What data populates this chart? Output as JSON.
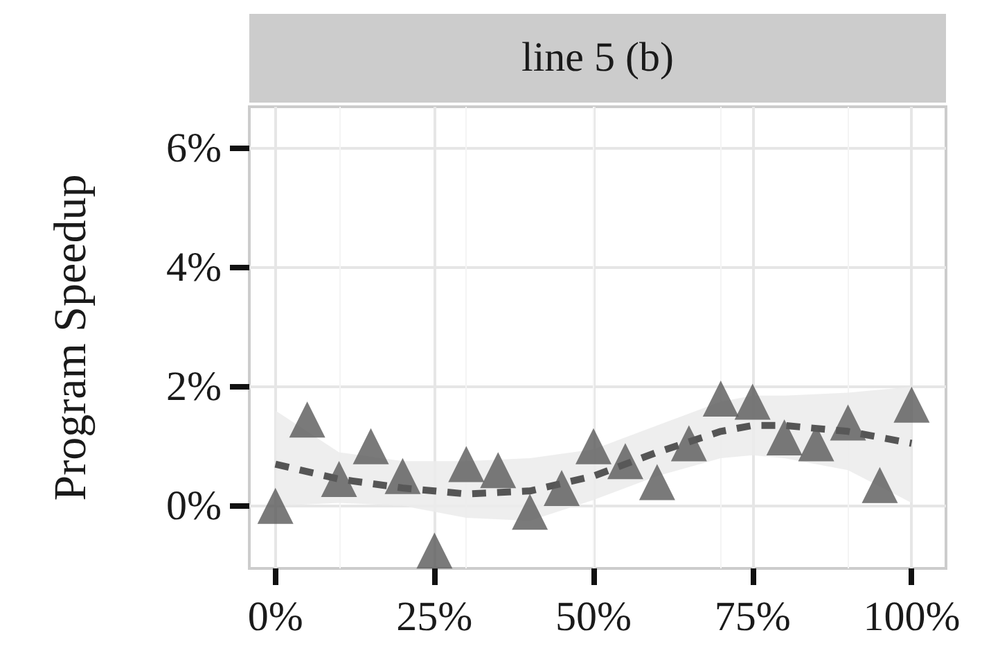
{
  "chart_data": {
    "type": "scatter",
    "title": "line 5 (b)",
    "ylabel": "Program Speedup",
    "x": [
      0,
      5,
      10,
      15,
      20,
      25,
      30,
      35,
      40,
      45,
      50,
      55,
      60,
      65,
      70,
      75,
      80,
      85,
      90,
      95,
      100
    ],
    "series": [
      {
        "color": "#595959",
        "marker": "triangle",
        "values": [
          0.0,
          1.45,
          0.45,
          1.0,
          0.5,
          -0.75,
          0.7,
          0.6,
          -0.1,
          0.3,
          1.0,
          0.75,
          0.4,
          1.05,
          1.8,
          1.75,
          1.15,
          1.05,
          1.4,
          0.35,
          1.7
        ]
      },
      {
        "type": "line",
        "color": "#555555",
        "line_style": "dashed",
        "marker": "none",
        "x": [
          0,
          10,
          20,
          30,
          40,
          50,
          60,
          70,
          75,
          80,
          90,
          100
        ],
        "values": [
          0.7,
          0.45,
          0.3,
          0.2,
          0.25,
          0.5,
          0.9,
          1.25,
          1.35,
          1.35,
          1.25,
          1.05
        ],
        "lower": [
          0.0,
          0.05,
          0.0,
          -0.2,
          -0.25,
          0.1,
          0.5,
          0.8,
          0.85,
          0.8,
          0.6,
          0.05
        ],
        "upper": [
          1.6,
          0.9,
          0.75,
          0.75,
          0.8,
          0.95,
          1.35,
          1.75,
          1.85,
          1.85,
          1.9,
          2.0
        ]
      }
    ],
    "xlim": [
      -4.1,
      105.4
    ],
    "xticks": [
      {
        "value": 0,
        "label": "0%"
      },
      {
        "value": 25,
        "label": "25%"
      },
      {
        "value": 50,
        "label": "50%"
      },
      {
        "value": 75,
        "label": "75%"
      },
      {
        "value": 100,
        "label": "100%"
      }
    ],
    "ylim": [
      -1.05,
      6.7
    ],
    "yticks": [
      {
        "value": 0,
        "label": "0%"
      },
      {
        "value": 2,
        "label": "2%"
      },
      {
        "value": 4,
        "label": "4%"
      },
      {
        "value": 6,
        "label": "6%"
      }
    ],
    "grid": true
  }
}
